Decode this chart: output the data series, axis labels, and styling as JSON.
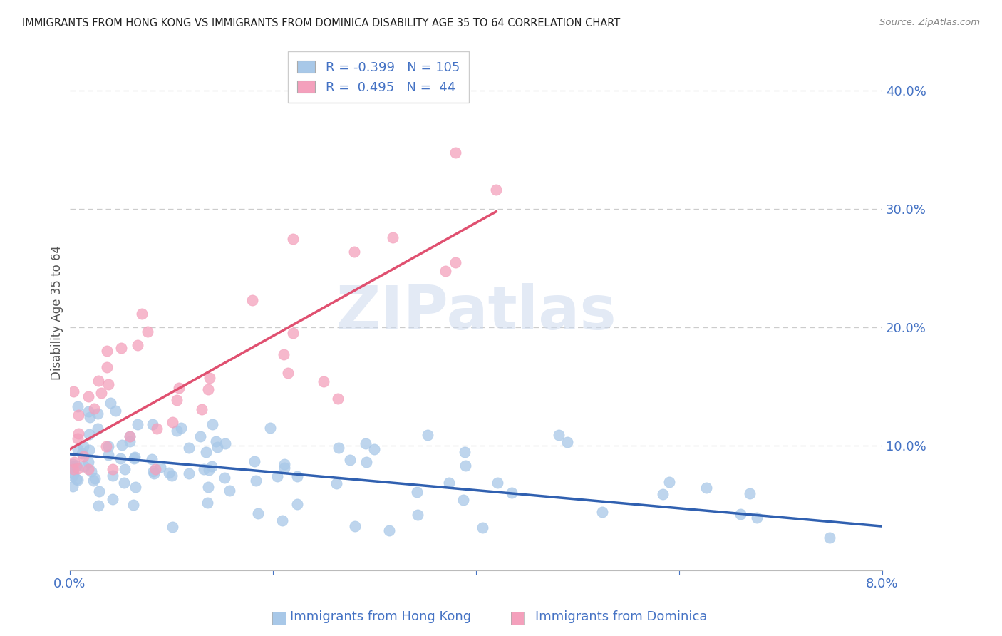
{
  "title": "IMMIGRANTS FROM HONG KONG VS IMMIGRANTS FROM DOMINICA DISABILITY AGE 35 TO 64 CORRELATION CHART",
  "source": "Source: ZipAtlas.com",
  "ylabel": "Disability Age 35 to 64",
  "xlim": [
    0.0,
    0.08
  ],
  "ylim": [
    -0.005,
    0.43
  ],
  "hk_R": -0.399,
  "hk_N": 105,
  "dom_R": 0.495,
  "dom_N": 44,
  "hk_color": "#a8c8e8",
  "dom_color": "#f4a0bc",
  "hk_line_color": "#3060b0",
  "dom_line_color": "#e05070",
  "axis_color": "#4472c4",
  "grid_color": "#cccccc",
  "title_color": "#222222",
  "background_color": "#ffffff",
  "watermark": "ZIPatlas",
  "yticks": [
    0.1,
    0.2,
    0.3,
    0.4
  ],
  "yticklabels": [
    "10.0%",
    "20.0%",
    "30.0%",
    "40.0%"
  ],
  "xtick_positions": [
    0.0,
    0.02,
    0.04,
    0.06,
    0.08
  ],
  "xtick_labels": [
    "0.0%",
    "",
    "",
    "",
    "8.0%"
  ],
  "hk_line_x0": 0.0,
  "hk_line_y0": 0.093,
  "hk_line_x1": 0.08,
  "hk_line_y1": 0.032,
  "dom_line_x0": 0.0,
  "dom_line_y0": 0.097,
  "dom_line_x1": 0.042,
  "dom_line_y1": 0.298,
  "legend_hk_text": "R = -0.399   N = 105",
  "legend_dom_text": "R =  0.495   N =  44",
  "bottom_legend_hk": "Immigrants from Hong Kong",
  "bottom_legend_dom": "Immigrants from Dominica"
}
